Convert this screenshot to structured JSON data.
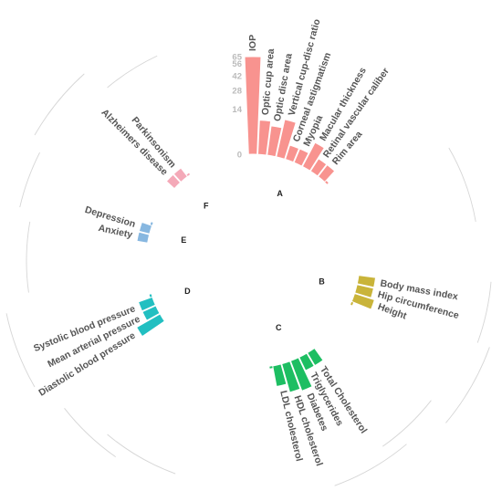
{
  "chart_data": {
    "type": "bar",
    "layout": "circular",
    "title": "",
    "xlabel": "",
    "ylabel": "",
    "yticks": [
      0,
      14,
      28,
      42,
      56,
      65
    ],
    "ylim": [
      0,
      65
    ],
    "grid": false,
    "legend": "none",
    "groups": [
      {
        "id": "A",
        "color": "#F8938F",
        "start": 0.0,
        "items": [
          {
            "label": "IOP",
            "value": 65
          },
          {
            "label": "Optic cup area",
            "value": 8
          },
          {
            "label": "Optic disc area",
            "value": 6
          },
          {
            "label": "Vertical cup-disc ratio",
            "value": 10
          },
          {
            "label": "Corneal astigmatism",
            "value": 1.5
          },
          {
            "label": "Myopia",
            "value": 1.5
          },
          {
            "label": "Macular thickness",
            "value": 5
          },
          {
            "label": "Retinal vascular caliber",
            "value": 1.5
          },
          {
            "label": "Rim area",
            "value": 1.5
          }
        ]
      },
      {
        "id": "B",
        "color": "#C9B43A",
        "start": 100.0,
        "items": [
          {
            "label": "Body mass index",
            "value": 2
          },
          {
            "label": "Hip circumference",
            "value": 2
          },
          {
            "label": "Height",
            "value": 3
          }
        ]
      },
      {
        "id": "C",
        "color": "#1DBE62",
        "start": 147.0,
        "items": [
          {
            "label": "Total Cholesterol",
            "value": 1.5
          },
          {
            "label": "Triglycerides",
            "value": 1.5
          },
          {
            "label": "Diabetes",
            "value": 7
          },
          {
            "label": "HDL cholesterol",
            "value": 6
          },
          {
            "label": "LDL cholesterol",
            "value": 3
          }
        ]
      },
      {
        "id": "D",
        "color": "#22BFC1",
        "start": 238.0,
        "items": [
          {
            "label": "Diastolic blood pressure",
            "value": 5
          },
          {
            "label": "Mean arterial pressure",
            "value": 1.5
          },
          {
            "label": "Systolic blood pressure",
            "value": 1.5
          }
        ]
      },
      {
        "id": "E",
        "color": "#87B7E0",
        "start": 282.0,
        "items": [
          {
            "label": "Anxiety",
            "value": 0.8
          },
          {
            "label": "Depression",
            "value": 0.8
          }
        ]
      },
      {
        "id": "F",
        "color": "#F4A9B8",
        "start": 315.0,
        "items": [
          {
            "label": "Alzheimers disease",
            "value": 0.8
          },
          {
            "label": "Parkinsonism",
            "value": 0.8
          }
        ]
      }
    ]
  },
  "colors": {
    "tick": "#bbbbbb",
    "label": "#555555",
    "arcs": "#d6d6d6"
  }
}
